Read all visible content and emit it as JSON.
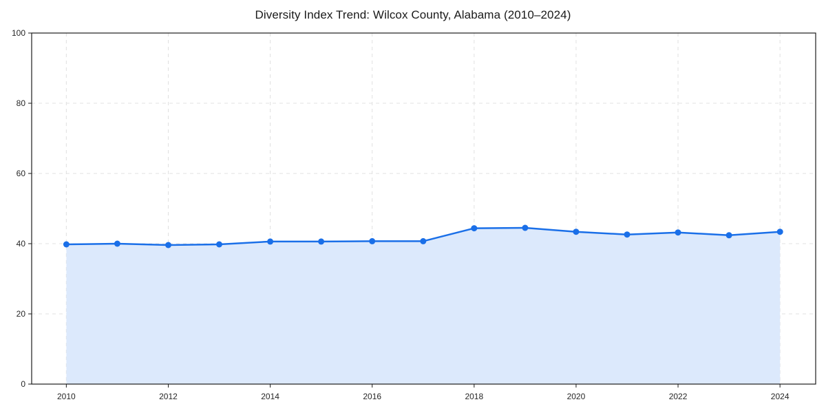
{
  "chart_data": {
    "type": "area",
    "title": "Diversity Index Trend: Wilcox County, Alabama (2010–2024)",
    "xlabel": "",
    "ylabel": "",
    "x": [
      2010,
      2011,
      2012,
      2013,
      2014,
      2015,
      2016,
      2017,
      2018,
      2019,
      2020,
      2021,
      2022,
      2023,
      2024
    ],
    "values": [
      39.8,
      40.0,
      39.6,
      39.8,
      40.6,
      40.6,
      40.7,
      40.7,
      44.4,
      44.5,
      43.4,
      42.6,
      43.2,
      42.4,
      43.4
    ],
    "xticks": [
      2010,
      2012,
      2014,
      2016,
      2018,
      2020,
      2022,
      2024
    ],
    "yticks": [
      0,
      20,
      40,
      60,
      80,
      100
    ],
    "xlim": [
      2009.32,
      2024.7
    ],
    "ylim": [
      0,
      100
    ],
    "grid": true,
    "grid_style": "dashed",
    "legend": "none",
    "line_color": "#1a6fe8",
    "fill_color": "#dce9fc",
    "grid_color": "#e0e0e0",
    "axis_color": "#1a1a1a",
    "tick_label_color": "#262626",
    "marker": "circle"
  }
}
